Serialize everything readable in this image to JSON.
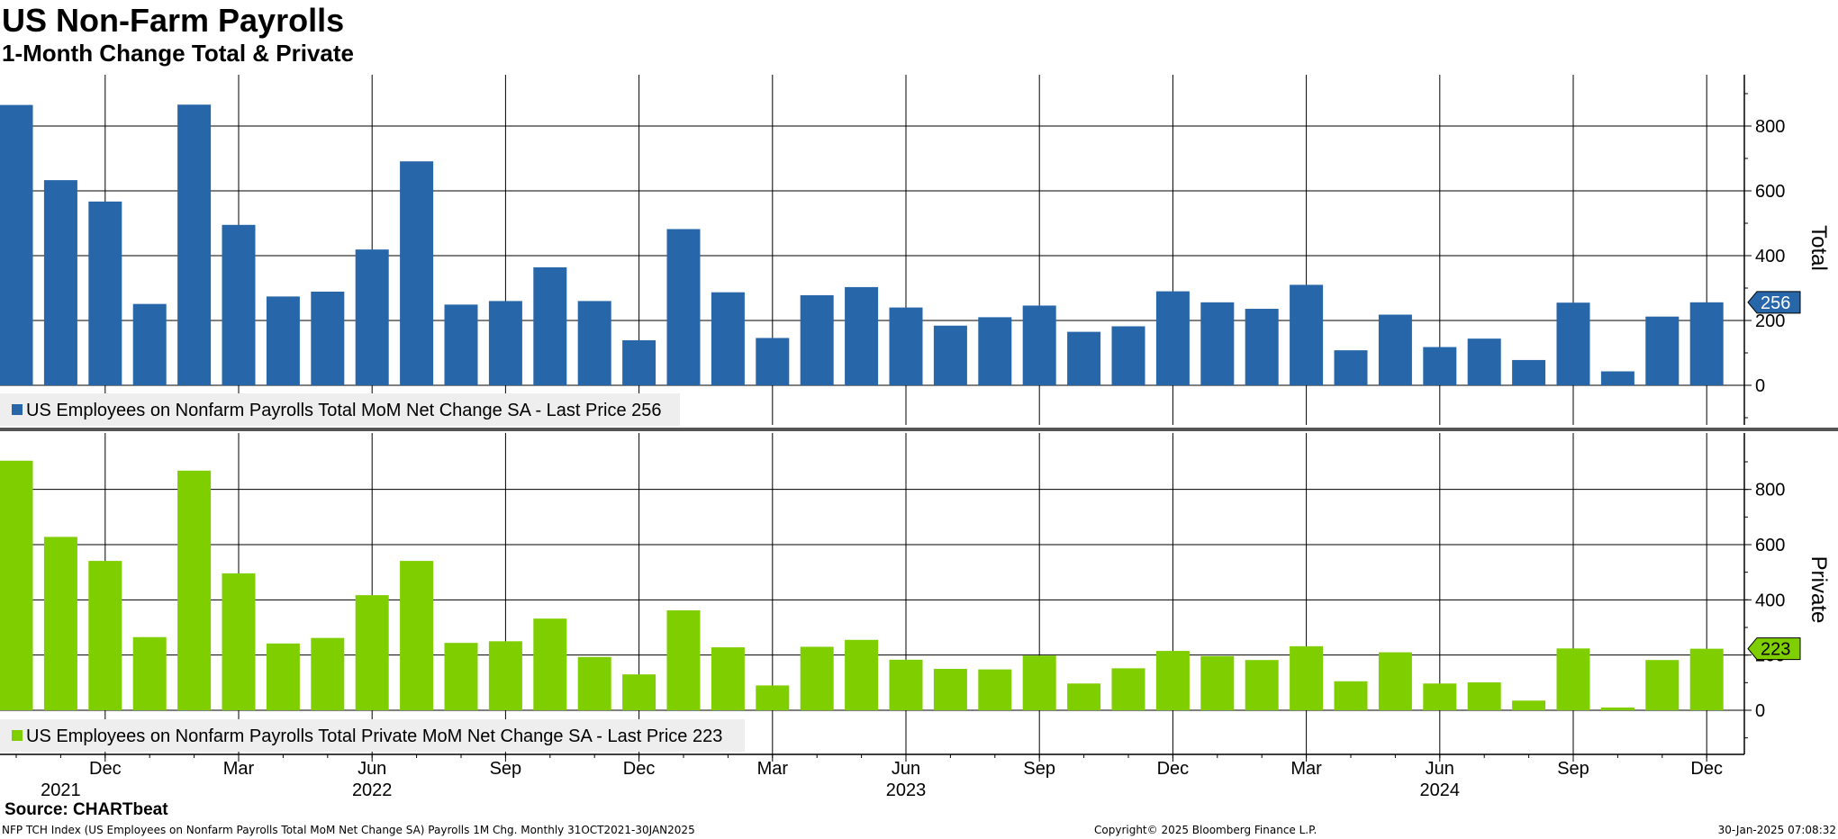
{
  "header": {
    "title": "US Non-Farm Payrolls",
    "subtitle": "1-Month Change Total & Private"
  },
  "footer": {
    "source": "Source: CHARTbeat",
    "index_description": "NFP TCH Index (US Employees on Nonfarm Payrolls Total MoM Net Change SA) Payrolls 1M Chg.  Monthly 31OCT2021-30JAN2025",
    "copyright": "Copyright© 2025 Bloomberg Finance L.P.",
    "timestamp": "30-Jan-2025 07:08:32"
  },
  "colors": {
    "total": "#2766a9",
    "private": "#7fcf00",
    "grid": "#000000",
    "legend_bg": "#eeeeee",
    "separator": "#555555"
  },
  "chart_data": [
    {
      "type": "bar",
      "panel": "top",
      "axis_title": "Total",
      "legend": "US Employees on Nonfarm Payrolls Total MoM Net Change SA - Last Price 256",
      "last_price_label": "256",
      "last_value": 256,
      "ylim": [
        -130,
        950
      ],
      "yticks": [
        0,
        200,
        400,
        600,
        800
      ],
      "grid": true,
      "legend_position": "bottom-left",
      "x": [
        "2021-10",
        "2021-11",
        "2021-12",
        "2022-01",
        "2022-02",
        "2022-03",
        "2022-04",
        "2022-05",
        "2022-06",
        "2022-07",
        "2022-08",
        "2022-09",
        "2022-10",
        "2022-11",
        "2022-12",
        "2023-01",
        "2023-02",
        "2023-03",
        "2023-04",
        "2023-05",
        "2023-06",
        "2023-07",
        "2023-08",
        "2023-09",
        "2023-10",
        "2023-11",
        "2023-12",
        "2024-01",
        "2024-02",
        "2024-03",
        "2024-04",
        "2024-05",
        "2024-06",
        "2024-07",
        "2024-08",
        "2024-09",
        "2024-10",
        "2024-11",
        "2024-12"
      ],
      "values": [
        865,
        633,
        567,
        251,
        866,
        495,
        274,
        289,
        419,
        691,
        249,
        260,
        364,
        260,
        139,
        482,
        287,
        146,
        278,
        303,
        240,
        184,
        210,
        246,
        165,
        182,
        290,
        256,
        236,
        310,
        108,
        218,
        118,
        144,
        78,
        255,
        43,
        212,
        256
      ],
      "series": [
        {
          "name": "US Employees on Nonfarm Payrolls Total MoM Net Change SA"
        }
      ]
    },
    {
      "type": "bar",
      "panel": "bottom",
      "axis_title": "Private",
      "legend": "US Employees on Nonfarm Payrolls Total Private MoM Net Change SA - Last Price 223",
      "last_price_label": "223",
      "last_value": 223,
      "ylim": [
        -160,
        960
      ],
      "yticks": [
        0,
        200,
        400,
        600,
        800
      ],
      "grid": true,
      "legend_position": "bottom-left",
      "x": [
        "2021-10",
        "2021-11",
        "2021-12",
        "2022-01",
        "2022-02",
        "2022-03",
        "2022-04",
        "2022-05",
        "2022-06",
        "2022-07",
        "2022-08",
        "2022-09",
        "2022-10",
        "2022-11",
        "2022-12",
        "2023-01",
        "2023-02",
        "2023-03",
        "2023-04",
        "2023-05",
        "2023-06",
        "2023-07",
        "2023-08",
        "2023-09",
        "2023-10",
        "2023-11",
        "2023-12",
        "2024-01",
        "2024-02",
        "2024-03",
        "2024-04",
        "2024-05",
        "2024-06",
        "2024-07",
        "2024-08",
        "2024-09",
        "2024-10",
        "2024-11",
        "2024-12"
      ],
      "values": [
        904,
        628,
        541,
        265,
        868,
        496,
        242,
        262,
        417,
        541,
        244,
        250,
        332,
        193,
        130,
        362,
        228,
        90,
        230,
        255,
        183,
        150,
        148,
        198,
        97,
        152,
        215,
        196,
        182,
        232,
        105,
        210,
        97,
        101,
        35,
        224,
        10,
        182,
        223
      ],
      "series": [
        {
          "name": "US Employees on Nonfarm Payrolls Total Private MoM Net Change SA"
        }
      ]
    }
  ],
  "x_axis": {
    "month_labels": [
      {
        "label": "Dec",
        "index": 2
      },
      {
        "label": "Mar",
        "index": 5
      },
      {
        "label": "Jun",
        "index": 8
      },
      {
        "label": "Sep",
        "index": 11
      },
      {
        "label": "Dec",
        "index": 14
      },
      {
        "label": "Mar",
        "index": 17
      },
      {
        "label": "Jun",
        "index": 20
      },
      {
        "label": "Sep",
        "index": 23
      },
      {
        "label": "Dec",
        "index": 26
      },
      {
        "label": "Mar",
        "index": 29
      },
      {
        "label": "Jun",
        "index": 32
      },
      {
        "label": "Sep",
        "index": 35
      },
      {
        "label": "Dec",
        "index": 38
      }
    ],
    "year_labels": [
      {
        "label": "2021",
        "index": 1
      },
      {
        "label": "2022",
        "index": 8
      },
      {
        "label": "2023",
        "index": 20
      },
      {
        "label": "2024",
        "index": 32
      }
    ]
  }
}
